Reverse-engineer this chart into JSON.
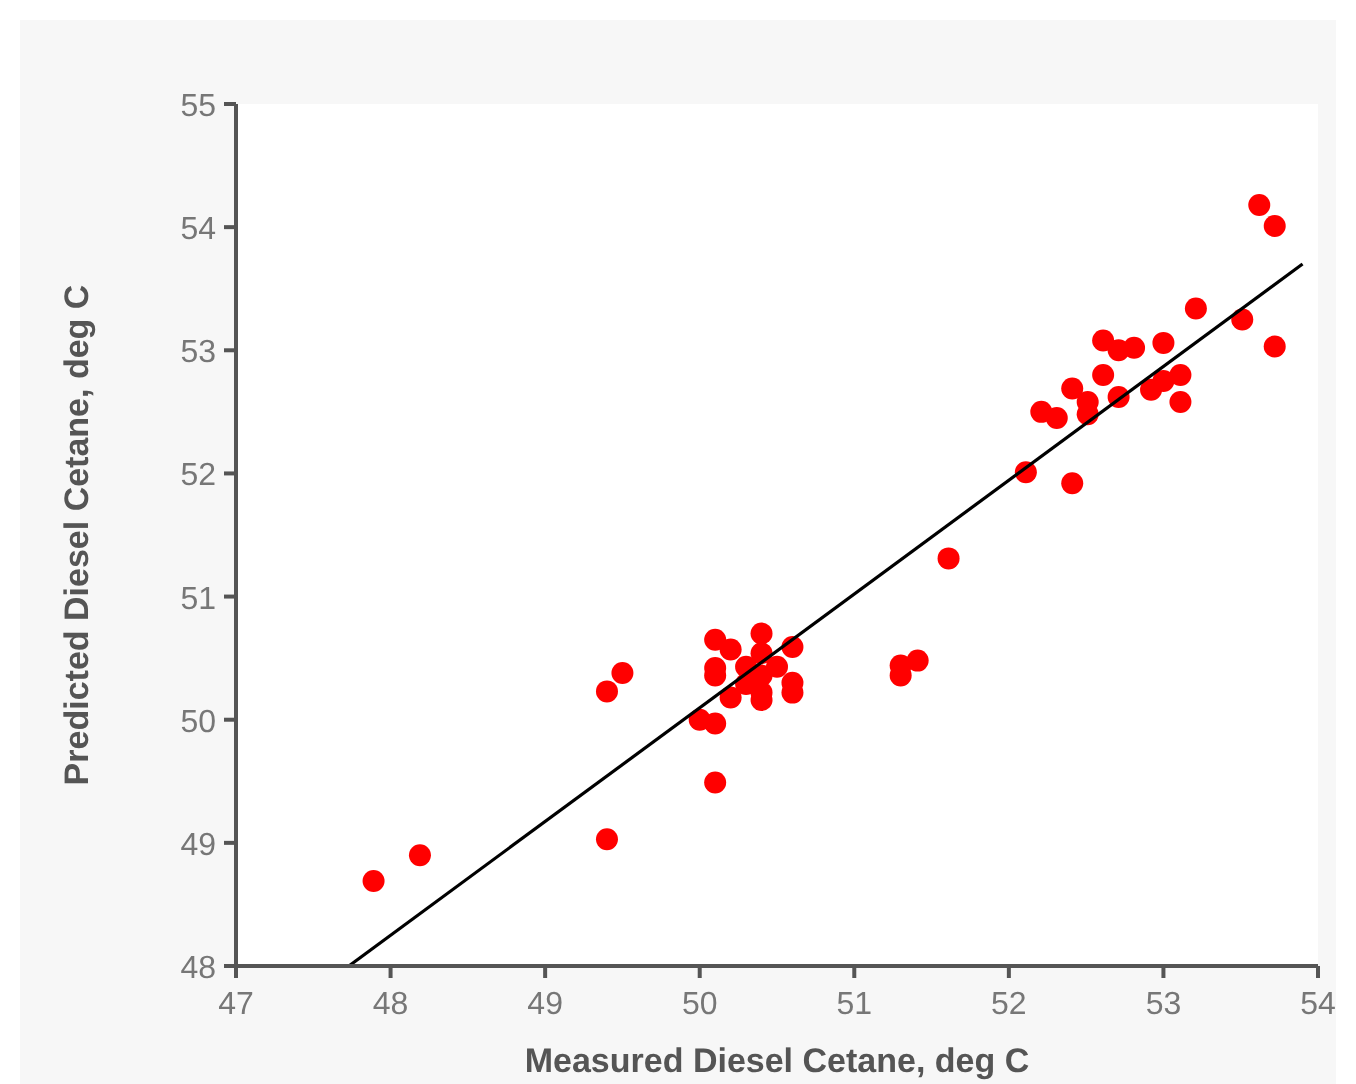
{
  "chart_data": {
    "type": "scatter",
    "xlabel": "Measured Diesel Cetane, deg C",
    "ylabel": "Predicted Diesel Cetane, deg C",
    "xlim": [
      47,
      54
    ],
    "ylim": [
      48,
      55
    ],
    "xticks": [
      47,
      48,
      49,
      50,
      51,
      52,
      53,
      54
    ],
    "yticks": [
      48,
      49,
      50,
      51,
      52,
      53,
      54,
      55
    ],
    "grid": false,
    "marker": "circle",
    "series": [
      {
        "color": "#ff0000",
        "x": [
          47.89,
          48.19,
          49.4,
          49.4,
          49.5,
          50.0,
          50.1,
          50.1,
          50.1,
          50.1,
          50.1,
          50.2,
          50.2,
          50.3,
          50.3,
          50.4,
          50.4,
          50.4,
          50.4,
          50.4,
          50.5,
          50.6,
          50.6,
          50.6,
          51.3,
          51.3,
          51.41,
          51.61,
          52.11,
          52.21,
          52.31,
          52.41,
          52.41,
          52.51,
          52.51,
          52.61,
          52.61,
          52.71,
          52.71,
          52.81,
          52.92,
          53.0,
          53.0,
          53.11,
          53.11,
          53.21,
          53.51,
          53.62,
          53.72,
          53.72
        ],
        "values": [
          48.69,
          48.9,
          49.03,
          50.23,
          50.38,
          50.0,
          49.97,
          49.49,
          50.65,
          50.42,
          50.36,
          50.57,
          50.18,
          50.43,
          50.29,
          50.7,
          50.54,
          50.36,
          50.16,
          50.22,
          50.43,
          50.59,
          50.3,
          50.22,
          50.36,
          50.44,
          50.48,
          51.31,
          52.01,
          52.5,
          52.45,
          51.92,
          52.69,
          52.58,
          52.48,
          52.8,
          53.08,
          53.0,
          52.62,
          53.02,
          52.68,
          53.06,
          52.75,
          52.8,
          52.58,
          53.34,
          53.25,
          54.18,
          54.01,
          53.03
        ]
      },
      {
        "type": "line",
        "color": "#000000",
        "marker": "none",
        "line_style": "solid",
        "x": [
          47.73,
          53.9
        ],
        "values": [
          48,
          53.7
        ]
      }
    ]
  }
}
